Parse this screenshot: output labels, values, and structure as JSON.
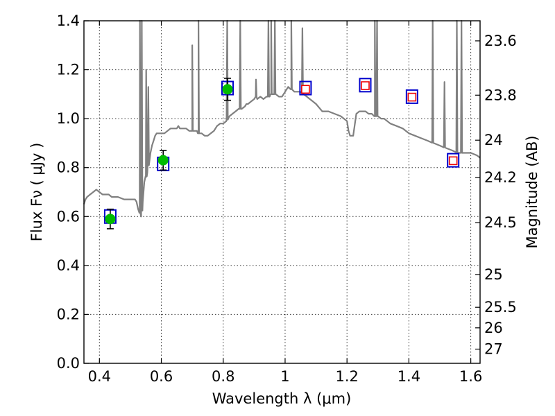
{
  "chart_data": {
    "type": "scatter",
    "xlabel": "Wavelength  λ (μm)",
    "ylabel": "Flux  Fν  ( μJy )",
    "y2label": "Magnitude (AB)",
    "xlim": [
      0.35,
      1.63
    ],
    "ylim": [
      0.0,
      1.4
    ],
    "grid": true,
    "x_ticks": [
      0.4,
      0.6,
      0.8,
      1.0,
      1.2,
      1.4,
      1.6
    ],
    "x_tick_labels": [
      "0.4",
      "0.6",
      "0.8",
      "1",
      "1.2",
      "1.4",
      "1.6"
    ],
    "y_ticks": [
      0.0,
      0.2,
      0.4,
      0.6,
      0.8,
      1.0,
      1.2,
      1.4
    ],
    "y_tick_labels": [
      "0.0",
      "0.2",
      "0.4",
      "0.6",
      "0.8",
      "1.0",
      "1.2",
      "1.4"
    ],
    "y2_ticks": [
      {
        "label": "23.6",
        "flux": 1.318
      },
      {
        "label": "23.8",
        "flux": 1.096
      },
      {
        "label": "24",
        "flux": 0.912
      },
      {
        "label": "24.2",
        "flux": 0.759
      },
      {
        "label": "24.5",
        "flux": 0.575
      },
      {
        "label": "25",
        "flux": 0.363
      },
      {
        "label": "25.5",
        "flux": 0.229
      },
      {
        "label": "26",
        "flux": 0.145
      },
      {
        "label": "27",
        "flux": 0.058
      }
    ],
    "colors": {
      "sed": "#808080",
      "observed": "#00bb00",
      "model_box": "#0000cc",
      "predicted": "#ee0000"
    },
    "observed_points": [
      {
        "x": 0.435,
        "y": 0.59,
        "err": 0.04
      },
      {
        "x": 0.606,
        "y": 0.83,
        "err": 0.04
      },
      {
        "x": 0.814,
        "y": 1.12,
        "err": 0.045
      }
    ],
    "model_photometry": [
      {
        "x": 0.435,
        "y": 0.6
      },
      {
        "x": 0.606,
        "y": 0.815
      },
      {
        "x": 0.814,
        "y": 1.125
      },
      {
        "x": 1.066,
        "y": 1.125
      },
      {
        "x": 1.259,
        "y": 1.137
      },
      {
        "x": 1.41,
        "y": 1.09
      },
      {
        "x": 1.543,
        "y": 0.83
      }
    ],
    "predicted_points": [
      {
        "x": 1.066,
        "y": 1.12
      },
      {
        "x": 1.259,
        "y": 1.135
      },
      {
        "x": 1.41,
        "y": 1.088
      },
      {
        "x": 1.543,
        "y": 0.828
      }
    ],
    "sed_spectrum": {
      "x": [
        0.35,
        0.355,
        0.36,
        0.37,
        0.38,
        0.39,
        0.4,
        0.41,
        0.42,
        0.43,
        0.44,
        0.46,
        0.48,
        0.5,
        0.515,
        0.52,
        0.525,
        0.53,
        0.534,
        0.535,
        0.54,
        0.545,
        0.55,
        0.555,
        0.56,
        0.565,
        0.57,
        0.575,
        0.58,
        0.585,
        0.59,
        0.595,
        0.6,
        0.61,
        0.62,
        0.63,
        0.64,
        0.65,
        0.655,
        0.66,
        0.67,
        0.68,
        0.69,
        0.7,
        0.705,
        0.71,
        0.715,
        0.72,
        0.725,
        0.73,
        0.74,
        0.75,
        0.76,
        0.77,
        0.78,
        0.79,
        0.8,
        0.81,
        0.82,
        0.83,
        0.84,
        0.85,
        0.86,
        0.87,
        0.875,
        0.88,
        0.89,
        0.9,
        0.905,
        0.91,
        0.92,
        0.93,
        0.94,
        0.95,
        0.953,
        0.955,
        0.96,
        0.97,
        0.98,
        0.99,
        1.0,
        1.005,
        1.01,
        1.02,
        1.03,
        1.04,
        1.05,
        1.06,
        1.07,
        1.08,
        1.09,
        1.1,
        1.12,
        1.14,
        1.16,
        1.18,
        1.19,
        1.2,
        1.205,
        1.21,
        1.22,
        1.23,
        1.24,
        1.25,
        1.26,
        1.27,
        1.28,
        1.29,
        1.3,
        1.31,
        1.32,
        1.33,
        1.34,
        1.36,
        1.38,
        1.4,
        1.42,
        1.44,
        1.46,
        1.48,
        1.5,
        1.52,
        1.54,
        1.56,
        1.58,
        1.6,
        1.62,
        1.63
      ],
      "y": [
        0.65,
        0.67,
        0.68,
        0.69,
        0.7,
        0.71,
        0.7,
        0.69,
        0.69,
        0.69,
        0.68,
        0.68,
        0.67,
        0.67,
        0.67,
        0.66,
        0.63,
        0.62,
        0.6,
        0.6,
        0.66,
        0.74,
        0.76,
        0.78,
        0.83,
        0.86,
        0.89,
        0.91,
        0.93,
        0.94,
        0.94,
        0.94,
        0.94,
        0.94,
        0.95,
        0.96,
        0.96,
        0.96,
        0.97,
        0.96,
        0.96,
        0.96,
        0.95,
        0.95,
        0.95,
        0.95,
        0.95,
        0.94,
        0.94,
        0.94,
        0.93,
        0.93,
        0.94,
        0.95,
        0.97,
        0.98,
        0.98,
        0.99,
        1.01,
        1.02,
        1.03,
        1.04,
        1.04,
        1.05,
        1.06,
        1.06,
        1.07,
        1.08,
        1.09,
        1.08,
        1.09,
        1.08,
        1.09,
        1.09,
        1.1,
        1.1,
        1.1,
        1.1,
        1.09,
        1.09,
        1.11,
        1.12,
        1.13,
        1.12,
        1.11,
        1.11,
        1.11,
        1.1,
        1.09,
        1.08,
        1.07,
        1.06,
        1.03,
        1.03,
        1.02,
        1.01,
        1.0,
        0.99,
        0.95,
        0.93,
        0.93,
        1.02,
        1.03,
        1.03,
        1.03,
        1.02,
        1.02,
        1.01,
        1.01,
        1.0,
        1.0,
        0.99,
        0.98,
        0.97,
        0.96,
        0.94,
        0.93,
        0.92,
        0.91,
        0.9,
        0.89,
        0.88,
        0.87,
        0.86,
        0.86,
        0.86,
        0.85,
        0.84
      ],
      "emission_lines": [
        {
          "x": 0.531,
          "peak": 1.42
        },
        {
          "x": 0.537,
          "peak": 1.42
        },
        {
          "x": 0.551,
          "peak": 1.2
        },
        {
          "x": 0.558,
          "peak": 1.13
        },
        {
          "x": 0.7,
          "peak": 1.3
        },
        {
          "x": 0.72,
          "peak": 1.42
        },
        {
          "x": 0.813,
          "peak": 1.42
        },
        {
          "x": 0.855,
          "peak": 1.42
        },
        {
          "x": 0.906,
          "peak": 1.16
        },
        {
          "x": 0.946,
          "peak": 1.42
        },
        {
          "x": 0.955,
          "peak": 1.42
        },
        {
          "x": 0.967,
          "peak": 1.42
        },
        {
          "x": 1.02,
          "peak": 1.42
        },
        {
          "x": 1.056,
          "peak": 1.37
        },
        {
          "x": 1.29,
          "peak": 1.42
        },
        {
          "x": 1.297,
          "peak": 1.42
        },
        {
          "x": 1.477,
          "peak": 1.42
        },
        {
          "x": 1.515,
          "peak": 1.15
        },
        {
          "x": 1.555,
          "peak": 1.42
        },
        {
          "x": 1.57,
          "peak": 1.42
        }
      ]
    }
  }
}
